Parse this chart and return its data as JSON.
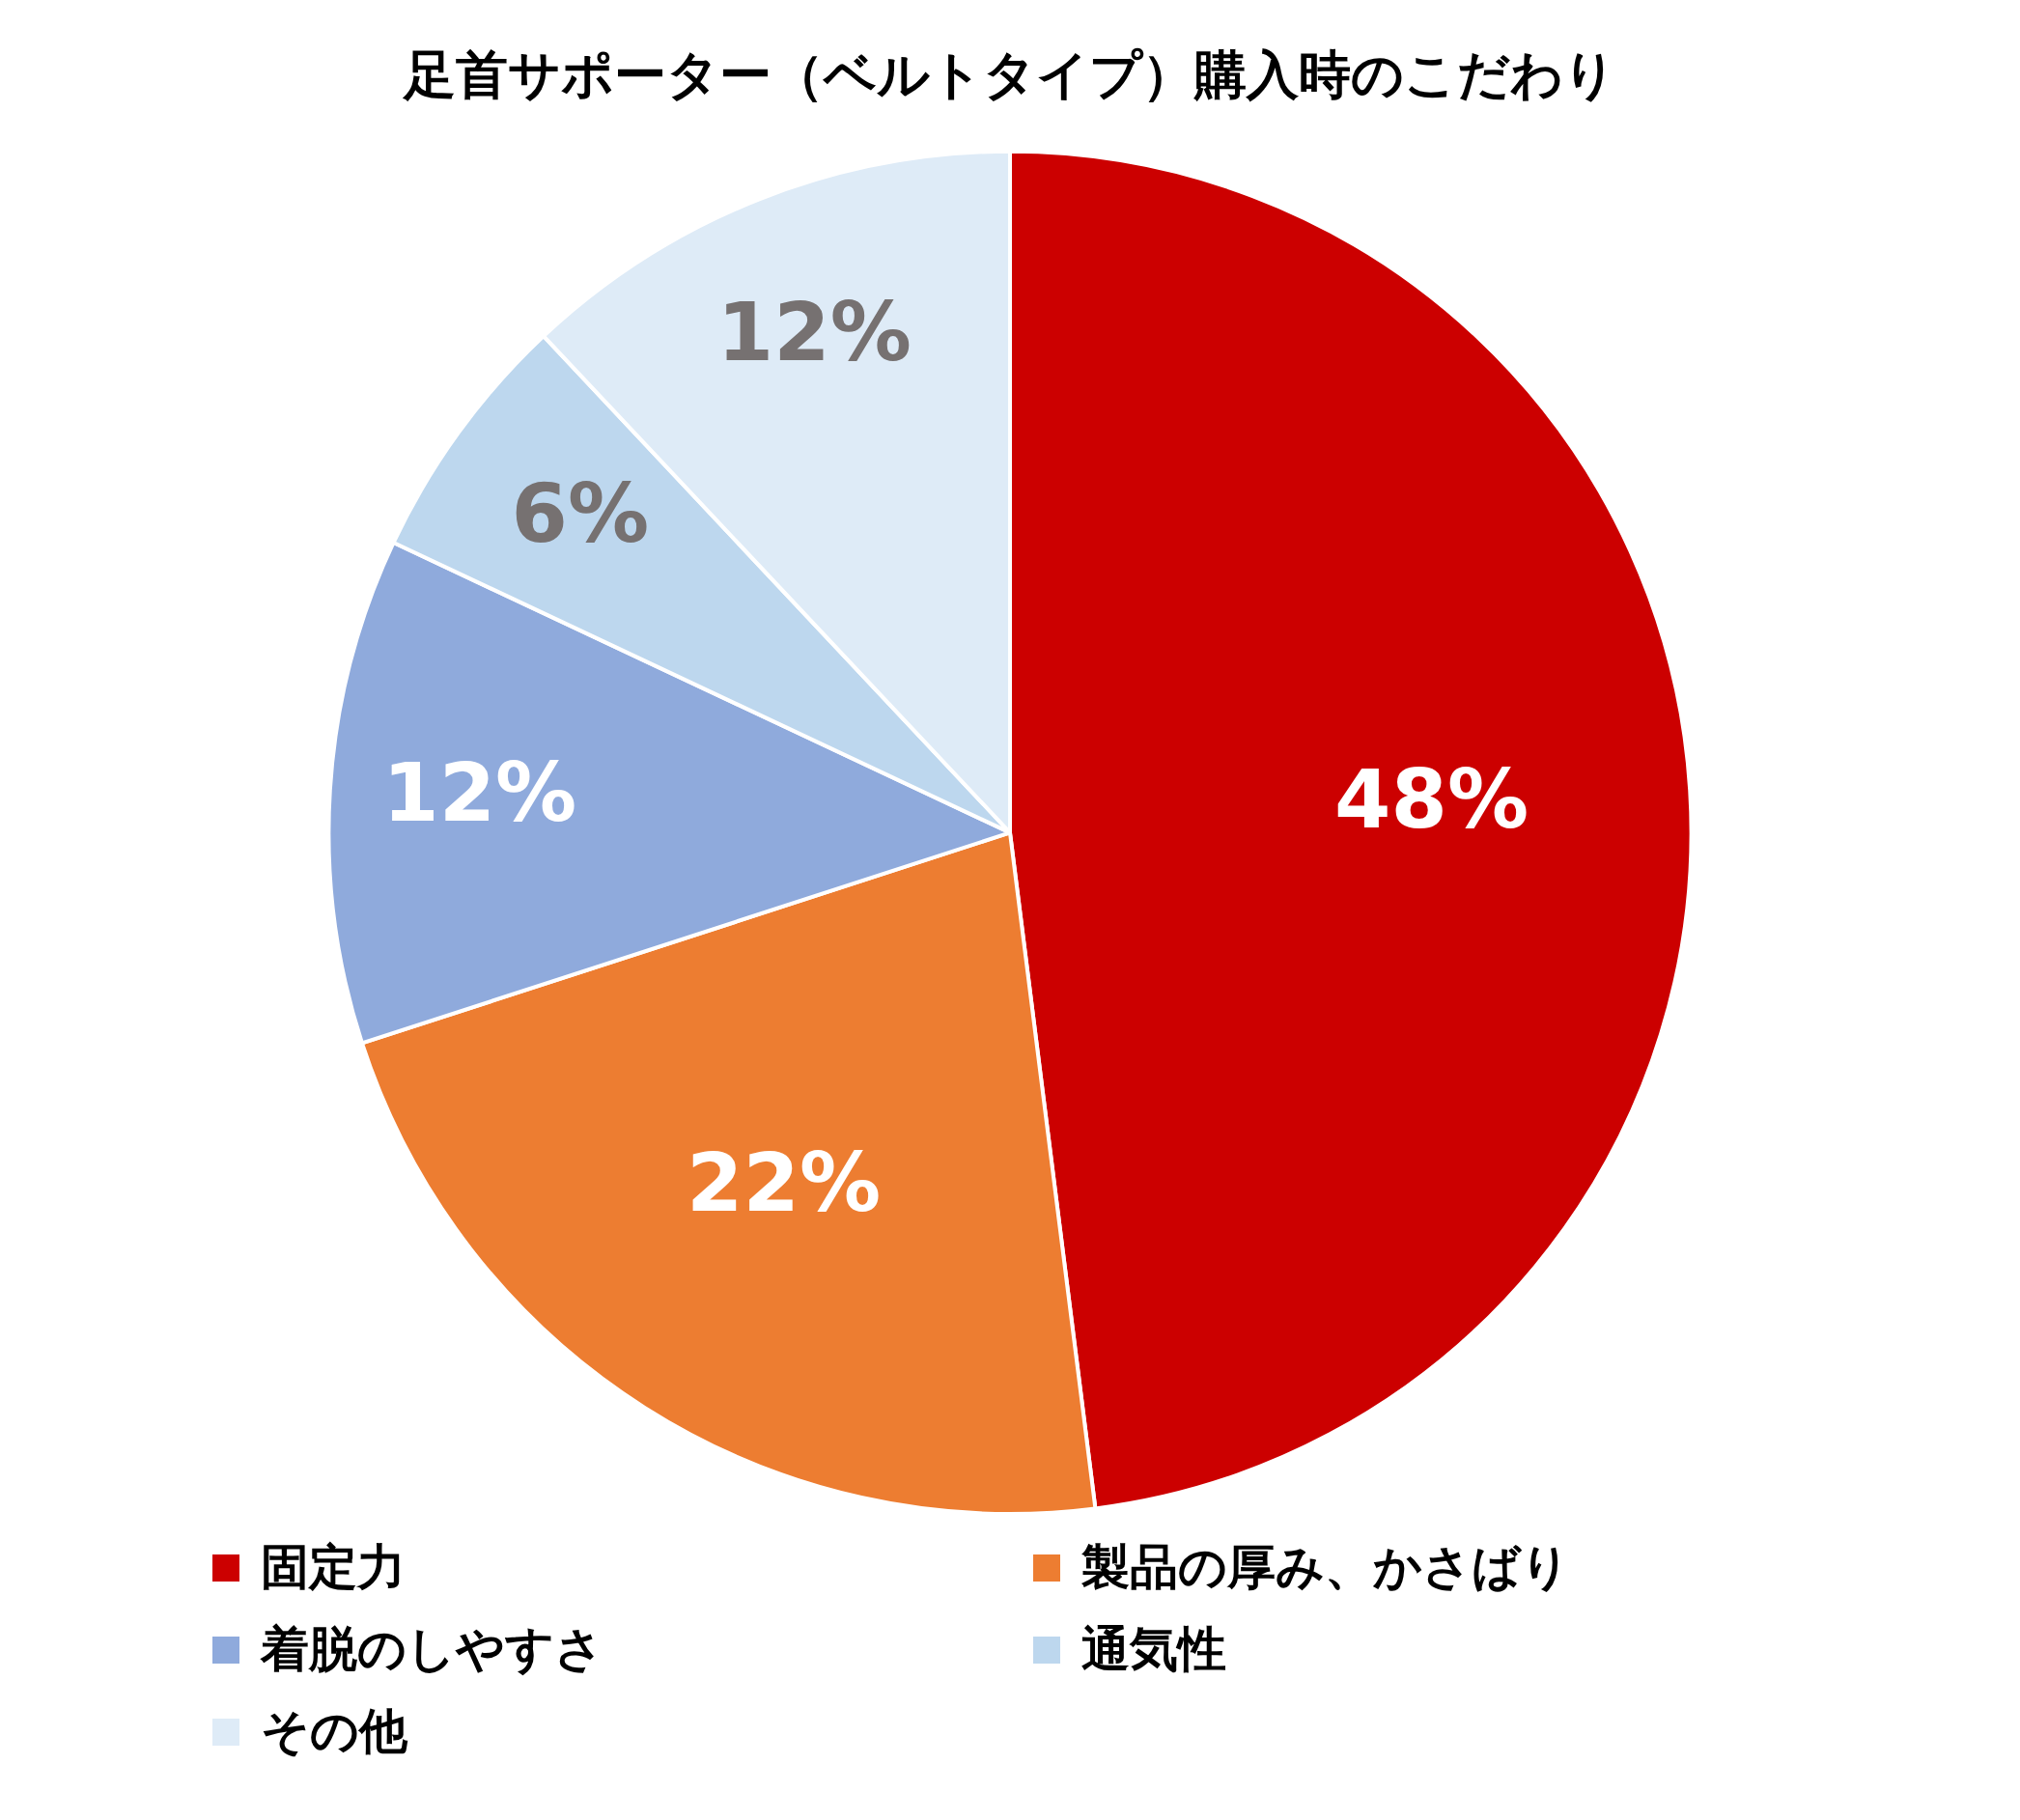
{
  "chart_data": {
    "type": "pie",
    "title": "足首サポーター（ベルトタイプ）購入時のこだわり",
    "categories": [
      "固定力",
      "製品の厚み、かさばり",
      "着脱のしやすさ",
      "通気性",
      "その他"
    ],
    "values": [
      48,
      22,
      12,
      6,
      12
    ],
    "colors": [
      "#cc0000",
      "#ed7d31",
      "#8faadc",
      "#bdd7ee",
      "#deebf7"
    ],
    "value_labels": [
      "48%",
      "22%",
      "12%",
      "6%",
      "12%"
    ],
    "legend": "bottom"
  }
}
